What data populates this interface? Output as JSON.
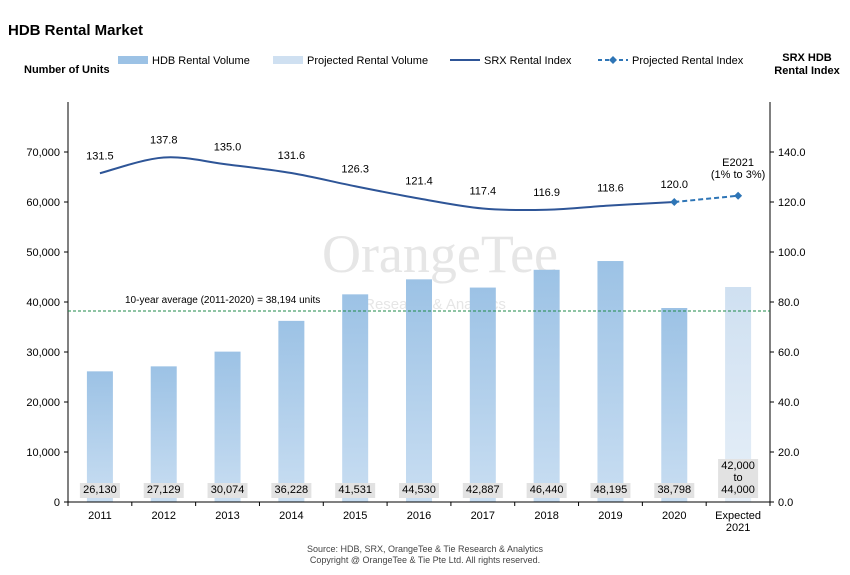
{
  "title": "HDB Rental Market",
  "watermark": {
    "brand": "OrangeTee",
    "sub": "Research & Analytics"
  },
  "legend": [
    {
      "label": "HDB Rental Volume",
      "kind": "bar",
      "color": "#9cc2e5"
    },
    {
      "label": "Projected Rental Volume",
      "kind": "bar",
      "color": "#cfe0f1"
    },
    {
      "label": "SRX Rental Index",
      "kind": "line",
      "color": "#2e5597"
    },
    {
      "label": "Projected Rental Index",
      "kind": "dashed-line",
      "color": "#2e75b6"
    }
  ],
  "source_lines": [
    "Source: HDB, SRX, OrangeTee & Tie Research & Analytics",
    "Copyright @ OrangeTee & Tie Pte Ltd. All rights reserved."
  ],
  "chart_data": {
    "type": "bar",
    "title": "HDB Rental Market",
    "categories": [
      [
        "2011"
      ],
      [
        "2012"
      ],
      [
        "2013"
      ],
      [
        "2014"
      ],
      [
        "2015"
      ],
      [
        "2016"
      ],
      [
        "2017"
      ],
      [
        "2018"
      ],
      [
        "2019"
      ],
      [
        "2020"
      ],
      [
        "Expected",
        "2021"
      ]
    ],
    "y_left": {
      "label": "Number of Units",
      "ylim": [
        0,
        80000
      ],
      "ticks": [
        0,
        10000,
        20000,
        30000,
        40000,
        50000,
        60000,
        70000
      ],
      "tick_labels": [
        "0",
        "10,000",
        "20,000",
        "30,000",
        "40,000",
        "50,000",
        "60,000",
        "70,000"
      ]
    },
    "y_right": {
      "label_lines": [
        "SRX HDB",
        "Rental Index"
      ],
      "ylim": [
        0,
        160
      ],
      "ticks": [
        0,
        20,
        40,
        60,
        80,
        100,
        120,
        140
      ],
      "tick_labels": [
        "0.0",
        "20.0",
        "40.0",
        "60.0",
        "80.0",
        "100.0",
        "120.0",
        "140.0"
      ]
    },
    "series": [
      {
        "name": "HDB Rental Volume",
        "kind": "bar",
        "axis": "left",
        "color": "#9cc2e5",
        "values": [
          26130,
          27129,
          30074,
          36228,
          41531,
          44530,
          42887,
          46440,
          48195,
          38798,
          null
        ],
        "labels": [
          [
            "26,130"
          ],
          [
            "27,129"
          ],
          [
            "30,074"
          ],
          [
            "36,228"
          ],
          [
            "41,531"
          ],
          [
            "44,530"
          ],
          [
            "42,887"
          ],
          [
            "46,440"
          ],
          [
            "48,195"
          ],
          [
            "38,798"
          ],
          null
        ]
      },
      {
        "name": "Projected Rental Volume",
        "kind": "bar",
        "axis": "left",
        "color": "#cfe0f1",
        "values": [
          null,
          null,
          null,
          null,
          null,
          null,
          null,
          null,
          null,
          null,
          43000
        ],
        "labels": [
          null,
          null,
          null,
          null,
          null,
          null,
          null,
          null,
          null,
          null,
          [
            "42,000",
            "to",
            "44,000"
          ]
        ]
      },
      {
        "name": "SRX Rental Index",
        "kind": "line",
        "axis": "right",
        "color": "#2e5597",
        "values": [
          131.5,
          137.8,
          135.0,
          131.6,
          126.3,
          121.4,
          117.4,
          116.9,
          118.6,
          120.0,
          null
        ],
        "labels": [
          "131.5",
          "137.8",
          "135.0",
          "131.6",
          "126.3",
          "121.4",
          "117.4",
          "116.9",
          "118.6",
          "120.0",
          null
        ]
      },
      {
        "name": "Projected Rental Index",
        "kind": "dashed-line",
        "axis": "right",
        "color": "#2e75b6",
        "values": [
          null,
          null,
          null,
          null,
          null,
          null,
          null,
          null,
          null,
          120.0,
          122.5
        ],
        "labels": [
          null,
          null,
          null,
          null,
          null,
          null,
          null,
          null,
          null,
          null,
          [
            "E2021",
            "(1% to 3%)"
          ]
        ]
      }
    ],
    "reference_line": {
      "value": 38194,
      "axis": "left",
      "label": "10-year average (2011-2020) = 38,194 units",
      "color": "#1e8a4a"
    },
    "grid": false,
    "legend_position": "top"
  }
}
